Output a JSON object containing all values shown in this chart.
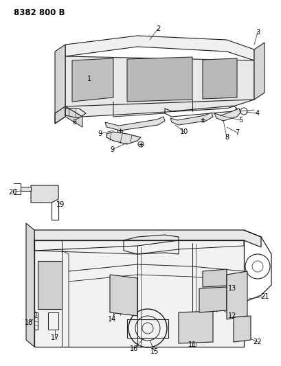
{
  "title": "8382 800 B",
  "background_color": "#ffffff",
  "fig_width": 4.1,
  "fig_height": 5.33,
  "dpi": 100,
  "line_color": "#1a1a1a",
  "label_fontsize": 7.0
}
